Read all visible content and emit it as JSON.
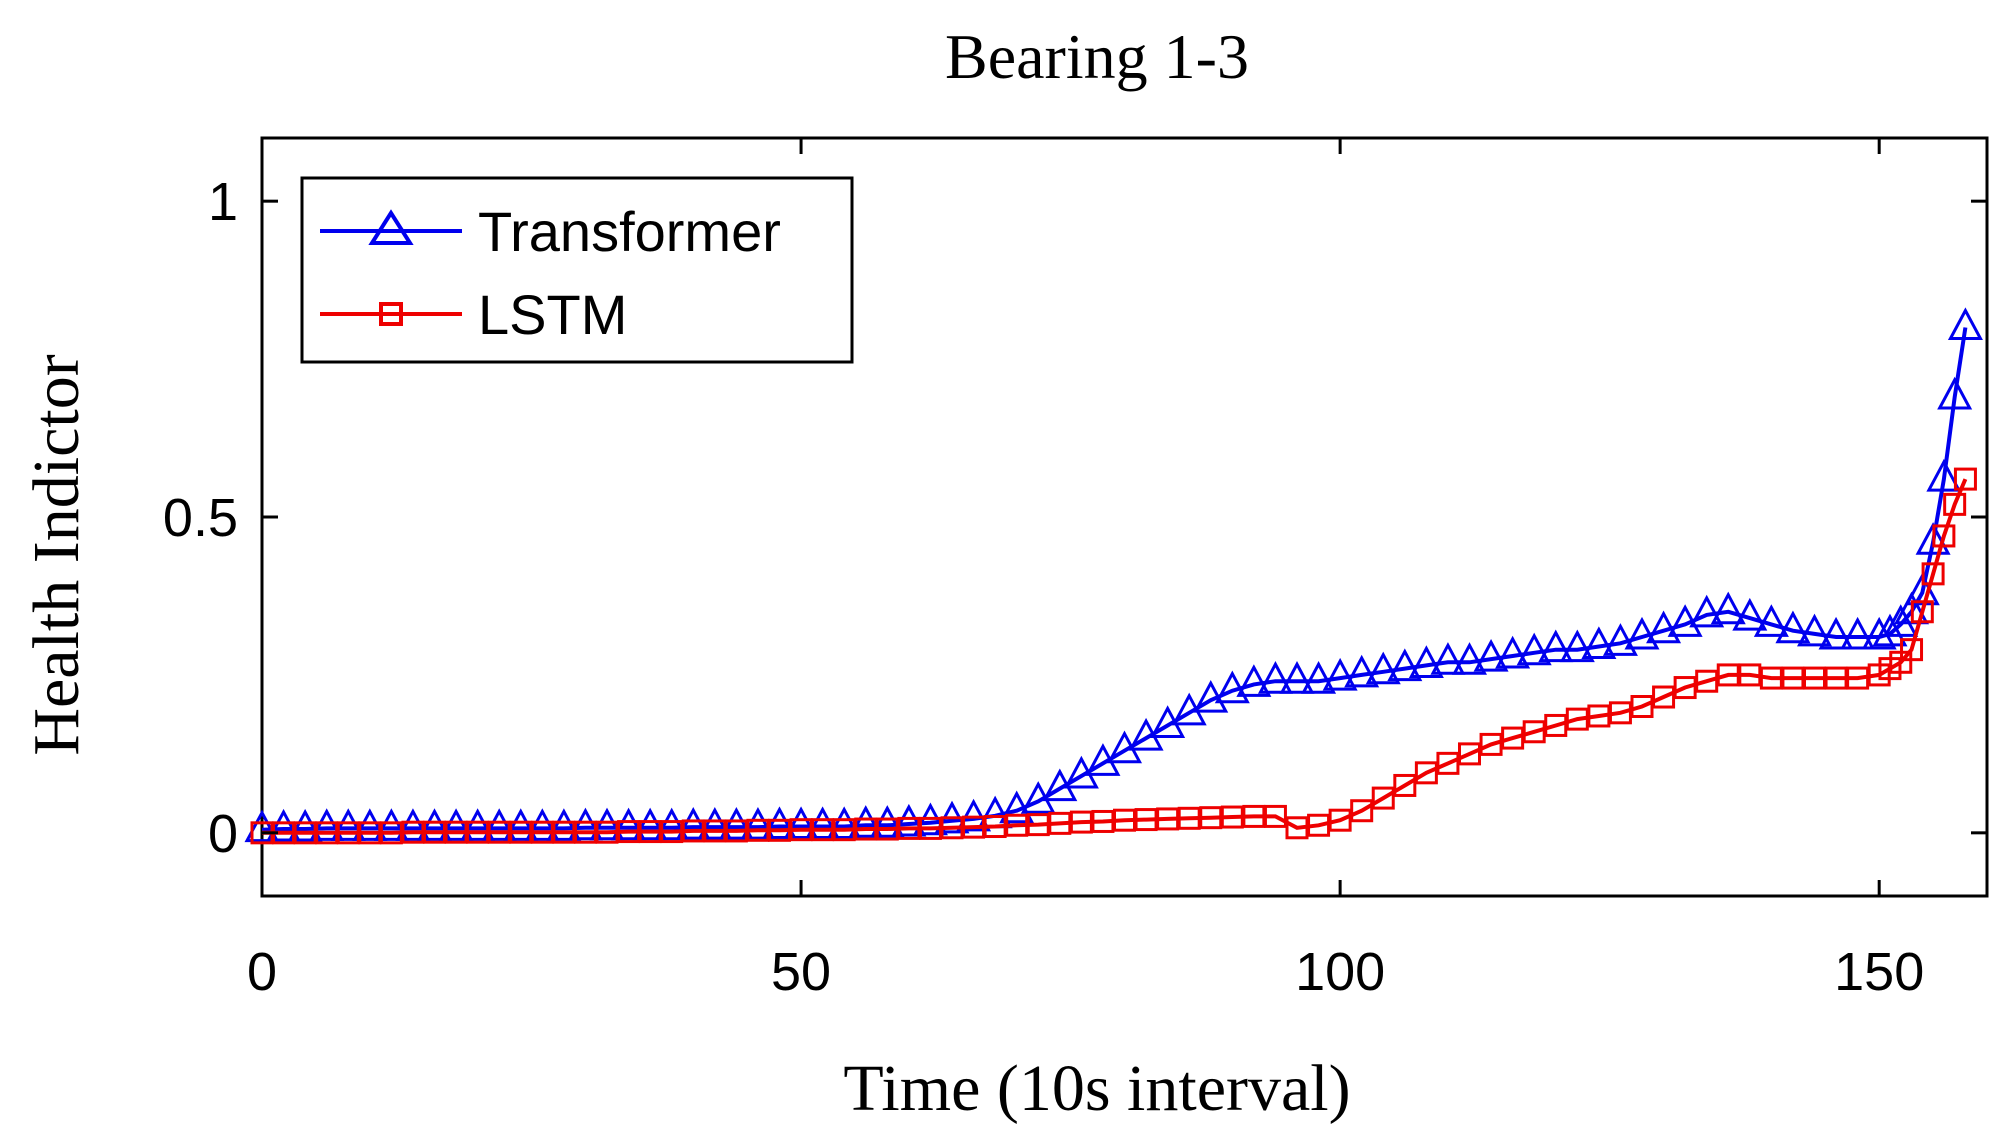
{
  "chart_data": {
    "type": "line",
    "title": "Bearing 1-3",
    "xlabel": "Time (10s interval)",
    "ylabel": "Health Indictor",
    "xlim": [
      0,
      160
    ],
    "ylim": [
      -0.1,
      1.1
    ],
    "x_ticks": [
      0,
      50,
      100,
      150
    ],
    "y_ticks": [
      0,
      0.5,
      1
    ],
    "x_tick_labels": [
      "0",
      "50",
      "100",
      "150"
    ],
    "y_tick_labels": [
      "0",
      "0.5",
      "1"
    ],
    "grid": false,
    "legend_position": "top-left",
    "series": [
      {
        "name": "Transformer",
        "color": "#0000ee",
        "marker": "triangle",
        "x": [
          0,
          2,
          4,
          6,
          8,
          10,
          12,
          14,
          16,
          18,
          20,
          22,
          24,
          26,
          28,
          30,
          32,
          34,
          36,
          38,
          40,
          42,
          44,
          46,
          48,
          50,
          52,
          54,
          56,
          58,
          60,
          62,
          64,
          66,
          68,
          70,
          72,
          74,
          76,
          78,
          80,
          82,
          84,
          86,
          88,
          90,
          92,
          94,
          96,
          98,
          100,
          102,
          104,
          106,
          108,
          110,
          112,
          114,
          116,
          118,
          120,
          122,
          124,
          126,
          128,
          130,
          132,
          134,
          136,
          138,
          140,
          142,
          144,
          146,
          148,
          150,
          151,
          152,
          153,
          154,
          155,
          156,
          157,
          158
        ],
        "values": [
          0.005,
          0.006,
          0.006,
          0.007,
          0.007,
          0.007,
          0.007,
          0.007,
          0.007,
          0.007,
          0.007,
          0.007,
          0.007,
          0.007,
          0.007,
          0.008,
          0.008,
          0.008,
          0.008,
          0.008,
          0.009,
          0.009,
          0.009,
          0.009,
          0.01,
          0.01,
          0.01,
          0.01,
          0.012,
          0.012,
          0.014,
          0.016,
          0.019,
          0.022,
          0.027,
          0.035,
          0.05,
          0.07,
          0.09,
          0.11,
          0.13,
          0.15,
          0.17,
          0.19,
          0.21,
          0.225,
          0.235,
          0.24,
          0.24,
          0.24,
          0.245,
          0.25,
          0.255,
          0.26,
          0.265,
          0.27,
          0.27,
          0.275,
          0.28,
          0.285,
          0.29,
          0.29,
          0.295,
          0.3,
          0.31,
          0.32,
          0.33,
          0.345,
          0.35,
          0.34,
          0.33,
          0.32,
          0.315,
          0.31,
          0.31,
          0.31,
          0.315,
          0.33,
          0.35,
          0.38,
          0.46,
          0.56,
          0.69,
          0.8
        ]
      },
      {
        "name": "LSTM",
        "color": "#ee0000",
        "marker": "square",
        "x": [
          0,
          2,
          4,
          6,
          8,
          10,
          12,
          14,
          16,
          18,
          20,
          22,
          24,
          26,
          28,
          30,
          32,
          34,
          36,
          38,
          40,
          42,
          44,
          46,
          48,
          50,
          52,
          54,
          56,
          58,
          60,
          62,
          64,
          66,
          68,
          70,
          72,
          74,
          76,
          78,
          80,
          82,
          84,
          86,
          88,
          90,
          92,
          94,
          96,
          98,
          100,
          102,
          104,
          106,
          108,
          110,
          112,
          114,
          116,
          118,
          120,
          122,
          124,
          126,
          128,
          130,
          132,
          134,
          136,
          138,
          140,
          142,
          144,
          146,
          148,
          150,
          151,
          152,
          153,
          154,
          155,
          156,
          157,
          158
        ],
        "values": [
          0.0,
          0.0,
          0.0,
          0.0,
          0.0,
          0.0,
          0.0,
          0.001,
          0.001,
          0.001,
          0.001,
          0.001,
          0.001,
          0.001,
          0.001,
          0.001,
          0.001,
          0.002,
          0.002,
          0.002,
          0.003,
          0.003,
          0.003,
          0.004,
          0.004,
          0.005,
          0.005,
          0.005,
          0.006,
          0.006,
          0.007,
          0.007,
          0.008,
          0.009,
          0.01,
          0.012,
          0.013,
          0.015,
          0.017,
          0.018,
          0.02,
          0.021,
          0.022,
          0.023,
          0.024,
          0.025,
          0.026,
          0.026,
          0.008,
          0.012,
          0.02,
          0.035,
          0.055,
          0.075,
          0.095,
          0.11,
          0.125,
          0.14,
          0.15,
          0.16,
          0.17,
          0.18,
          0.185,
          0.19,
          0.2,
          0.215,
          0.23,
          0.24,
          0.25,
          0.25,
          0.245,
          0.245,
          0.245,
          0.245,
          0.245,
          0.25,
          0.26,
          0.27,
          0.29,
          0.35,
          0.41,
          0.47,
          0.52,
          0.56
        ]
      }
    ]
  }
}
